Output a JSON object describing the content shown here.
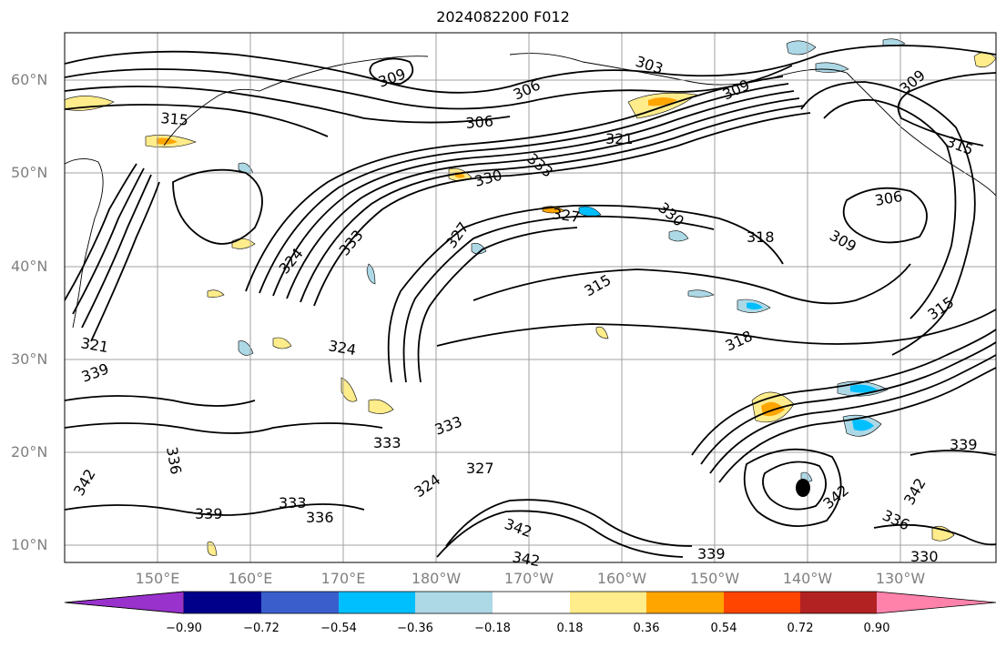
{
  "title": "2024082200 F012",
  "lat_labels": [
    "60°N",
    "50°N",
    "40°N",
    "30°N",
    "20°N",
    "10°N"
  ],
  "lon_labels": [
    "150°E",
    "160°E",
    "170°E",
    "180°W",
    "170°W",
    "160°W",
    "150°W",
    "140°W",
    "130°W"
  ],
  "colorbar": {
    "ticks": [
      "−0.90",
      "−0.72",
      "−0.54",
      "−0.36",
      "−0.18",
      "0.18",
      "0.36",
      "0.54",
      "0.72",
      "0.90"
    ],
    "colors": [
      "#9932cc",
      "#00008b",
      "#3a5fcd",
      "#00bfff",
      "#add8e6",
      "#ffffff",
      "#ffec8b",
      "#ffa500",
      "#ff4500",
      "#b22222",
      "#ff82ab"
    ]
  },
  "contour_labels": [
    "303",
    "306",
    "306",
    "306",
    "309",
    "309",
    "309",
    "309",
    "315",
    "315",
    "315",
    "315",
    "318",
    "318",
    "321",
    "321",
    "324",
    "324",
    "324",
    "327",
    "327",
    "327",
    "330",
    "330",
    "333",
    "333",
    "333",
    "333",
    "333",
    "336",
    "336",
    "336",
    "339",
    "339",
    "339",
    "339",
    "342",
    "342",
    "342",
    "342",
    "342",
    "330"
  ],
  "colors": {
    "contour": "#000000",
    "grid": "#a0a0a0",
    "axis_label": "#808080"
  }
}
